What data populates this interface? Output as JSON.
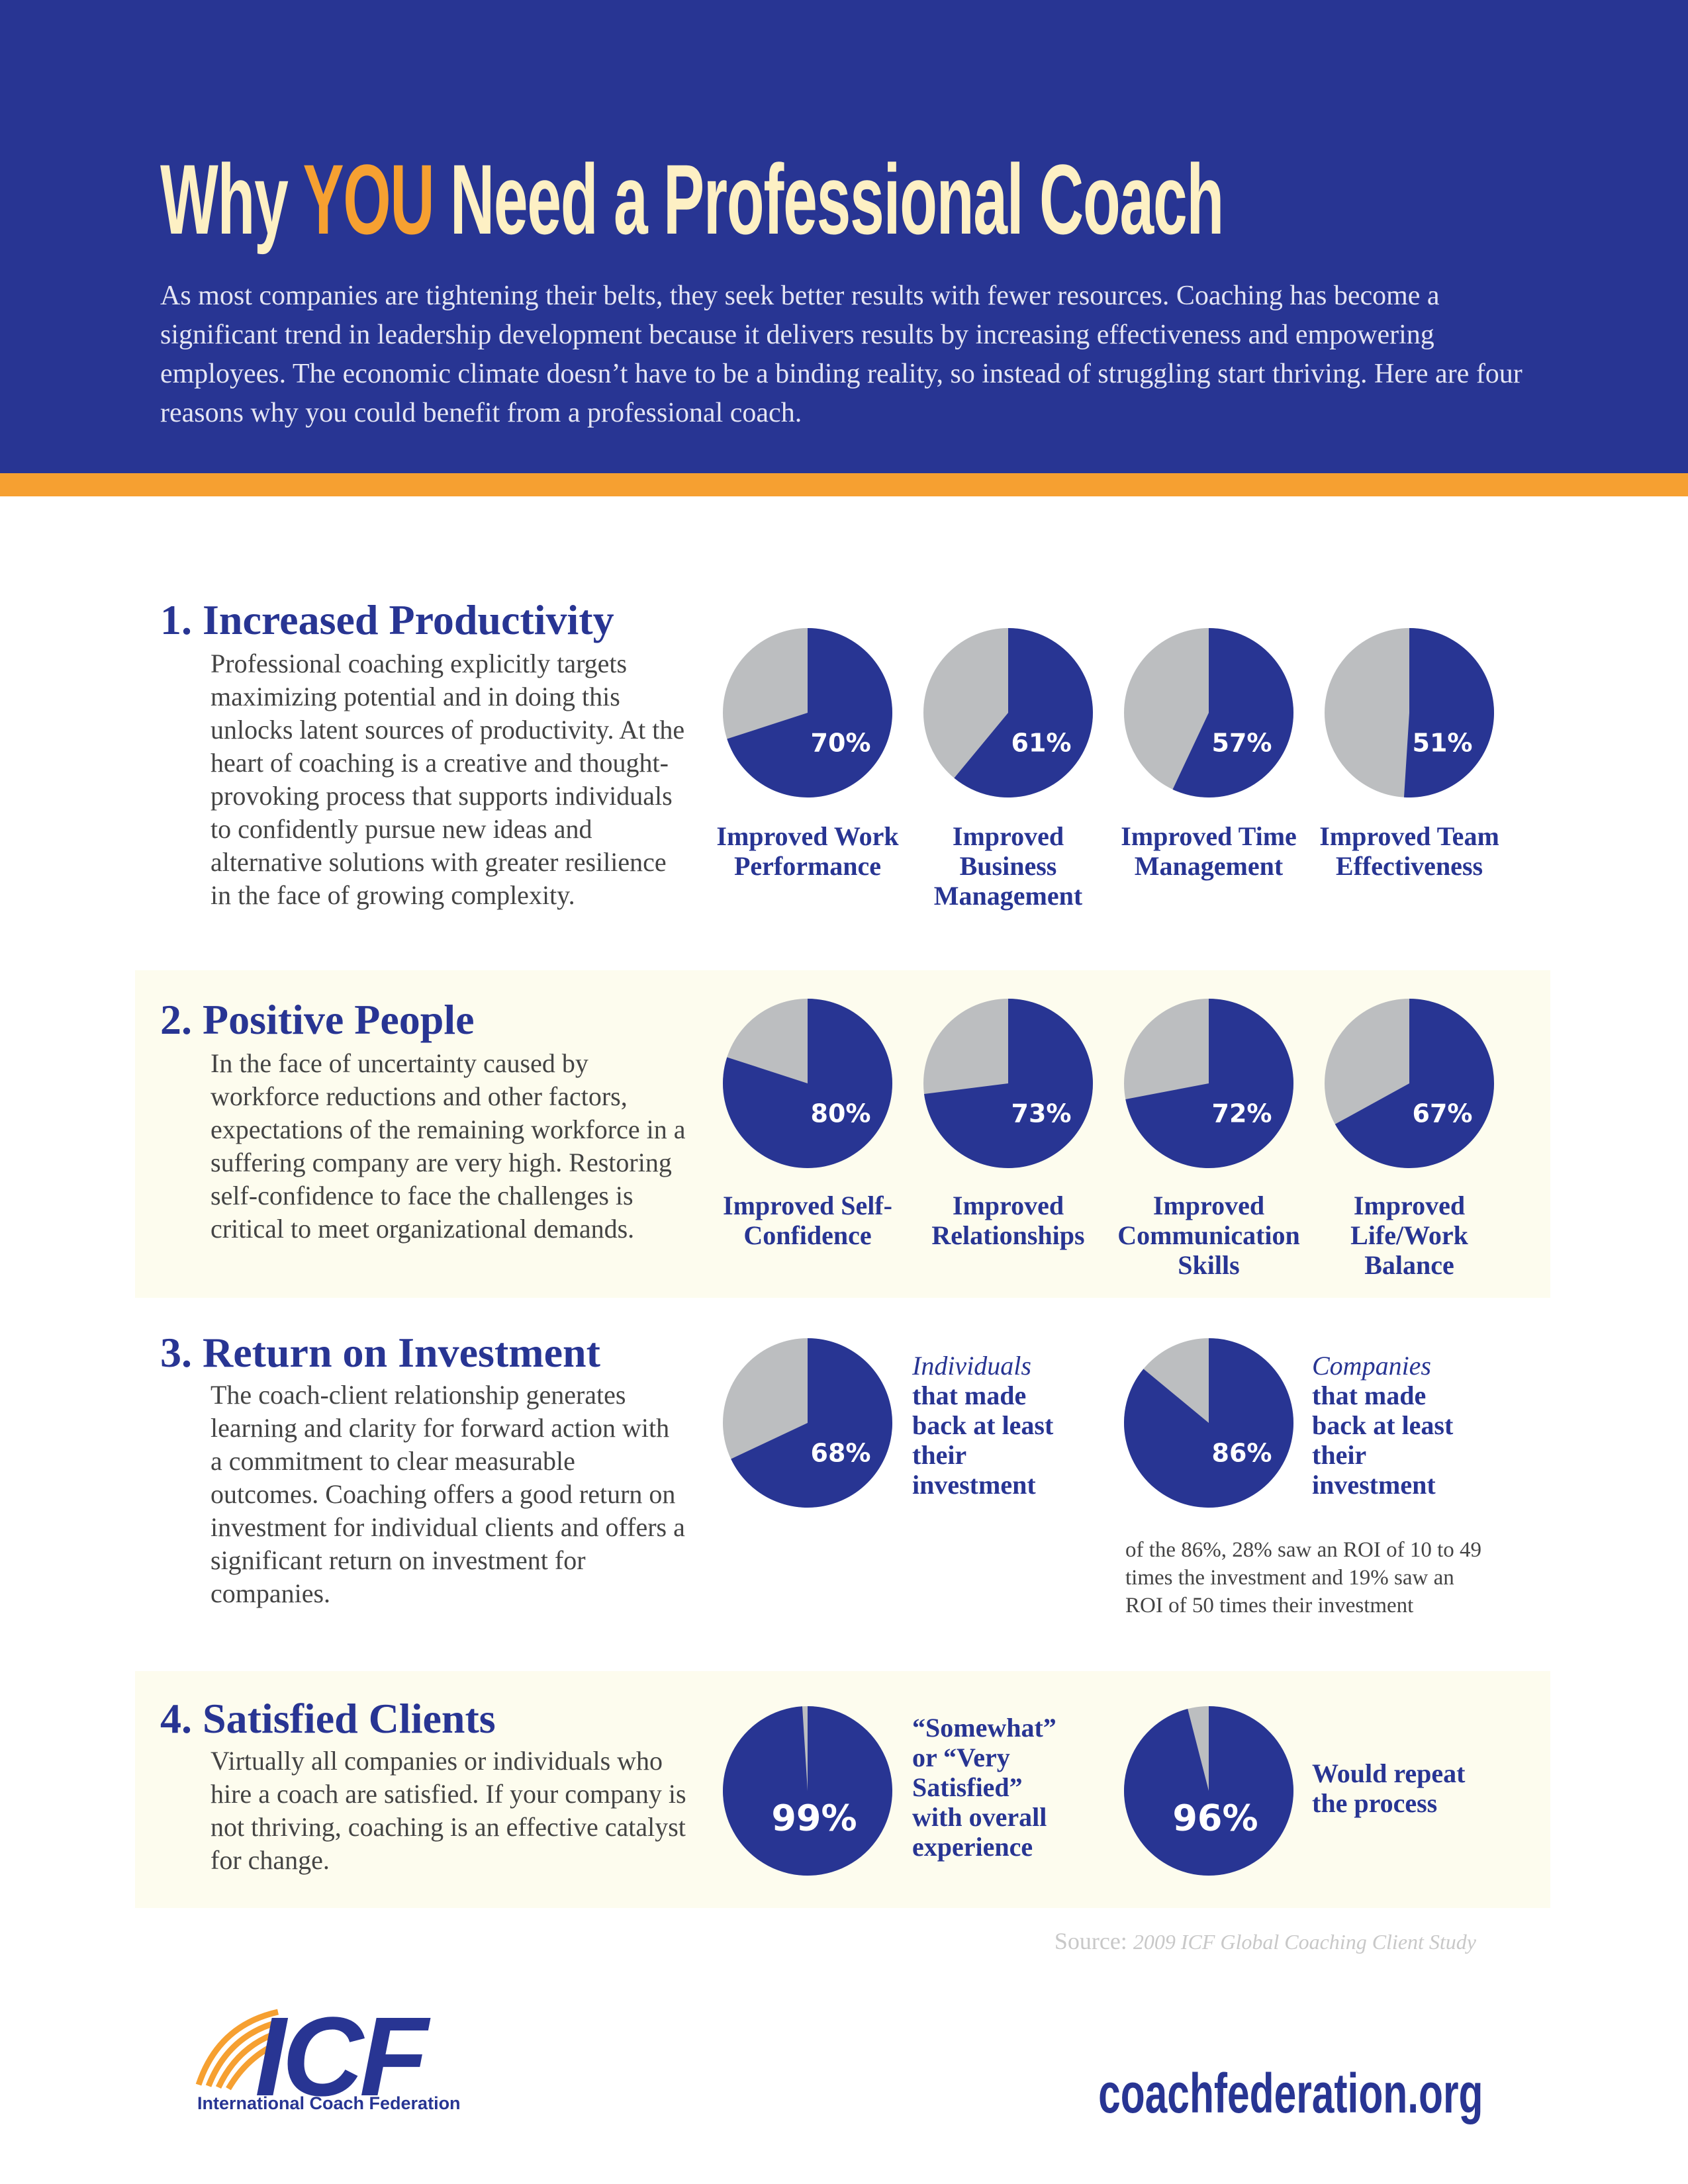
{
  "header": {
    "title_before": "Why",
    "title_highlight": "YOU",
    "title_after": "Need a Professional Coach",
    "intro": "As most companies are tightening their belts, they seek better results with fewer resources. Coaching has become a significant trend in leadership development because it delivers results by increasing effectiveness and empowering employees. The economic climate doesn’t have to be a binding reality, so instead of struggling start thriving. Here are four reasons why you could benefit from a professional coach."
  },
  "sections": [
    {
      "heading": "1. Increased Productivity",
      "text": "Professional coaching explicitly targets maximizing potential and in doing this unlocks latent sources of productivity. At the heart of coaching is a creative and thought-provoking process that supports individuals to confidently pursue new ideas and alternative solutions with greater resilience in the face of growing complexity.",
      "pies": [
        {
          "value": 70,
          "value_label": "70%",
          "label": "Improved Work Performance"
        },
        {
          "value": 61,
          "value_label": "61%",
          "label": "Improved Business Management"
        },
        {
          "value": 57,
          "value_label": "57%",
          "label": "Improved Time Management"
        },
        {
          "value": 51,
          "value_label": "51%",
          "label": "Improved Team Effectiveness"
        }
      ]
    },
    {
      "heading": "2. Positive People",
      "text": "In the face of uncertainty caused by workforce reductions and other factors, expectations of the remaining workforce in a suffering company are very high. Restoring self-confidence to face the challenges is critical to meet organizational demands.",
      "pies": [
        {
          "value": 80,
          "value_label": "80%",
          "label": "Improved Self-Confidence"
        },
        {
          "value": 73,
          "value_label": "73%",
          "label": "Improved Relationships"
        },
        {
          "value": 72,
          "value_label": "72%",
          "label": "Improved Communication Skills"
        },
        {
          "value": 67,
          "value_label": "67%",
          "label": "Improved Life/Work Balance"
        }
      ]
    },
    {
      "heading": "3. Return on Investment",
      "text": "The coach-client relationship generates learning and clarity for forward action with a commitment to clear measurable outcomes. Coaching offers a good return on investment for individual clients and offers a significant return on investment for companies.",
      "pies": [
        {
          "value": 68,
          "value_label": "68%",
          "caption_lead": "Individuals",
          "caption": "that made back at least their investment"
        },
        {
          "value": 86,
          "value_label": "86%",
          "caption_lead": "Companies",
          "caption": "that made back at least their investment"
        }
      ],
      "note": "of the 86%, 28% saw an ROI of 10 to 49 times the investment and 19% saw an ROI of 50 times their investment"
    },
    {
      "heading": "4. Satisfied Clients",
      "text": "Virtually all companies or individuals who hire a coach are satisfied. If your company is not thriving, coaching is an effective catalyst for change.",
      "pies": [
        {
          "value": 99,
          "value_label": "99%",
          "caption": "“Somewhat” or “Very Satisfied” with overall experience"
        },
        {
          "value": 96,
          "value_label": "96%",
          "caption": "Would repeat the process"
        }
      ]
    }
  ],
  "source": {
    "label": "Source:",
    "text": "2009 ICF Global Coaching Client Study"
  },
  "footer": {
    "logo": "ICF",
    "organization": "International Coach Federation",
    "url": "coachfederation.org"
  }
}
